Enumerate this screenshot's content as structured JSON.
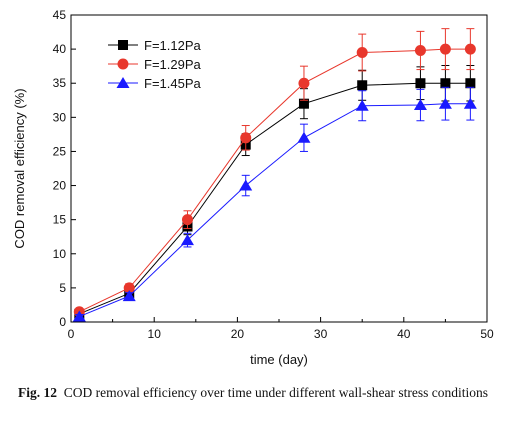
{
  "chart_data": {
    "type": "line",
    "title": "",
    "xlabel": "time (day)",
    "ylabel": "COD removal efficiency (%)",
    "xlim": [
      0,
      50
    ],
    "ylim": [
      0,
      45
    ],
    "xticks": [
      0,
      10,
      20,
      30,
      40,
      50
    ],
    "yticks": [
      0,
      5,
      10,
      15,
      20,
      25,
      30,
      35,
      40,
      45
    ],
    "grid": false,
    "legend_position": "top-left",
    "x": [
      1,
      7,
      14,
      21,
      28,
      35,
      42,
      45,
      48
    ],
    "series": [
      {
        "name": "F=1.12Pa",
        "marker": "square",
        "color": "#000000",
        "values": [
          1.2,
          4.2,
          14,
          26,
          32,
          34.7,
          35,
          35,
          35
        ],
        "errors": [
          0.3,
          0.5,
          1.2,
          1.6,
          2.2,
          2.2,
          2.4,
          2.6,
          2.6
        ]
      },
      {
        "name": "F=1.29Pa",
        "marker": "circle",
        "color": "#e8372c",
        "values": [
          1.5,
          5,
          15,
          27,
          35,
          39.5,
          39.8,
          40,
          40
        ],
        "errors": [
          0.3,
          0.6,
          1.3,
          1.8,
          2.5,
          2.7,
          2.8,
          3.0,
          3.0
        ]
      },
      {
        "name": "F=1.45Pa",
        "marker": "triangle",
        "color": "#1a1aff",
        "values": [
          0.8,
          3.8,
          12,
          20,
          27,
          31.7,
          31.8,
          32,
          32
        ],
        "errors": [
          0.3,
          0.5,
          1.0,
          1.5,
          2.0,
          2.2,
          2.3,
          2.4,
          2.4
        ]
      }
    ]
  },
  "caption": {
    "label": "Fig. 12",
    "text": "COD removal efficiency over time under different wall-shear stress conditions"
  }
}
